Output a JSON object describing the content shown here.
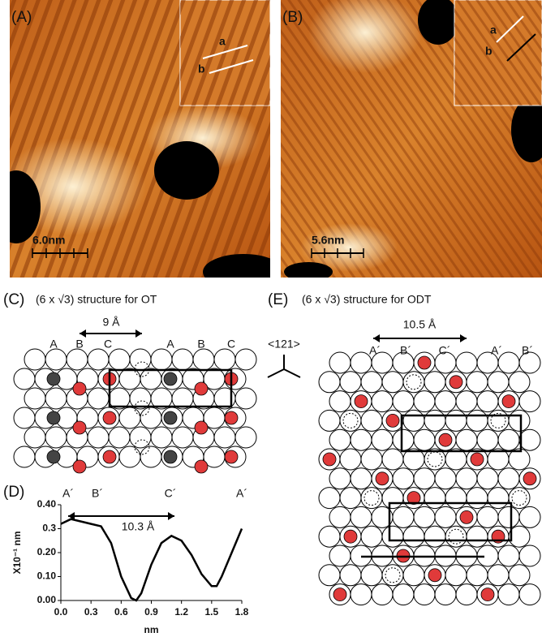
{
  "panels": {
    "a": {
      "label": "(A)",
      "scale": "6.0nm",
      "inset": [
        "a",
        "b"
      ]
    },
    "b": {
      "label": "(B)",
      "scale": "5.6nm",
      "inset": [
        "a",
        "b"
      ]
    },
    "c": {
      "label": "(C)",
      "title": "(6 x √3) structure  for OT",
      "sites": [
        "A",
        "B",
        "C",
        "A",
        "B",
        "C"
      ],
      "spacing": "9 Å"
    },
    "e": {
      "label": "(E)",
      "title": "(6 x √3) structure  for ODT",
      "sites": [
        "A´",
        "B´",
        "C´",
        "A´",
        "B´"
      ],
      "spacing": "10.5 Å"
    },
    "direction": "<121>"
  },
  "chart_data": {
    "type": "line",
    "label": "(D)",
    "sites": [
      "A´",
      "B´",
      "C´",
      "A´"
    ],
    "annotation": "10.3 Å",
    "x_label": "nm",
    "y_label": "X10⁻¹ nm",
    "x": [
      0,
      0.1,
      0.2,
      0.3,
      0.4,
      0.5,
      0.6,
      0.7,
      0.75,
      0.8,
      0.9,
      1.0,
      1.1,
      1.2,
      1.3,
      1.4,
      1.5,
      1.55,
      1.6,
      1.7,
      1.8
    ],
    "values": [
      0.32,
      0.34,
      0.33,
      0.32,
      0.31,
      0.24,
      0.1,
      0.01,
      0.0,
      0.03,
      0.15,
      0.24,
      0.27,
      0.25,
      0.19,
      0.11,
      0.06,
      0.06,
      0.1,
      0.2,
      0.3
    ],
    "color": "#000000",
    "xlim": [
      0,
      1.8
    ],
    "ylim": [
      0,
      0.4
    ],
    "xticks": [
      {
        "value": 0,
        "label": "0.0"
      },
      0.3,
      0.6,
      0.9,
      1.2,
      1.5,
      1.8
    ],
    "yticks": [
      {
        "value": 0,
        "label": "0.00"
      },
      {
        "value": 0.1,
        "label": "0.10"
      },
      {
        "value": 0.2,
        "label": "0.20"
      },
      0.3,
      {
        "value": 0.4,
        "label": "0.40"
      }
    ]
  }
}
